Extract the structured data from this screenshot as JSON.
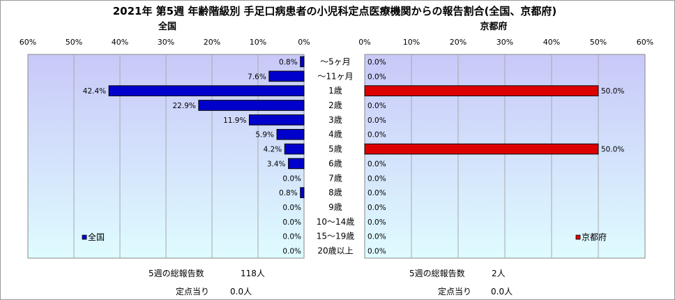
{
  "chart_data": {
    "type": "bar",
    "title": "2021年 第5週 年齢階級別 手足口病患者の小児科定点医療機関からの報告割合(全国、京都府)",
    "categories": [
      "～5ヶ月",
      "～11ヶ月",
      "1歳",
      "2歳",
      "3歳",
      "4歳",
      "5歳",
      "6歳",
      "7歳",
      "8歳",
      "9歳",
      "10～14歳",
      "15～19歳",
      "20歳以上"
    ],
    "x_ticks": [
      "0%",
      "10%",
      "20%",
      "30%",
      "40%",
      "50%",
      "60%"
    ],
    "xlim": [
      0,
      60
    ],
    "panels": [
      {
        "subtitle": "全国",
        "legend": "全国",
        "color": "#0000cc",
        "values": [
          0.8,
          7.6,
          42.4,
          22.9,
          11.9,
          5.9,
          4.2,
          3.4,
          0.0,
          0.8,
          0.0,
          0.0,
          0.0,
          0.0
        ],
        "value_labels": [
          "0.8%",
          "7.6%",
          "42.4%",
          "22.9%",
          "11.9%",
          "5.9%",
          "4.2%",
          "3.4%",
          "0.0%",
          "0.8%",
          "0.0%",
          "0.0%",
          "0.0%",
          "0.0%"
        ]
      },
      {
        "subtitle": "京都府",
        "legend": "京都府",
        "color": "#dd0000",
        "values": [
          0.0,
          0.0,
          50.0,
          0.0,
          0.0,
          0.0,
          50.0,
          0.0,
          0.0,
          0.0,
          0.0,
          0.0,
          0.0,
          0.0
        ],
        "value_labels": [
          "0.0%",
          "0.0%",
          "50.0%",
          "0.0%",
          "0.0%",
          "0.0%",
          "50.0%",
          "0.0%",
          "0.0%",
          "0.0%",
          "0.0%",
          "0.0%",
          "0.0%",
          "0.0%"
        ]
      }
    ]
  },
  "footer": {
    "national": {
      "total_label": "5週の総報告数",
      "total_value": "118人",
      "per_label": "定点当り",
      "per_value": "0.0人"
    },
    "kyoto": {
      "total_label": "5週の総報告数",
      "total_value": "2人",
      "per_label": "定点当り",
      "per_value": "0.0人"
    }
  }
}
